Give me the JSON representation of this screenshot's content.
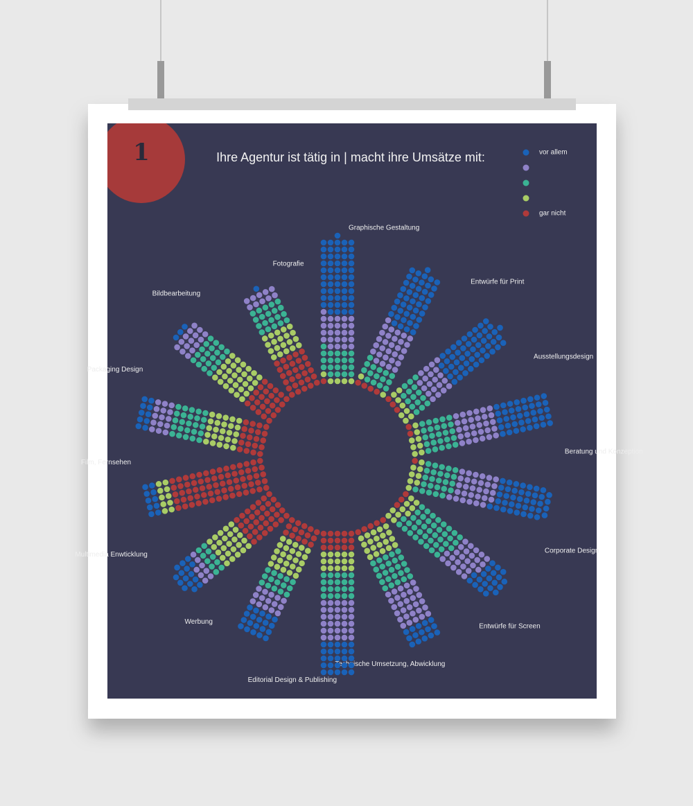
{
  "badge": "1",
  "chart_data": {
    "type": "radial-dot",
    "title": "Ihre Agentur ist tätig in | macht ihre Umsätze mit:",
    "categories": [
      "Graphische Gestaltung",
      "Entwürfe für Print",
      "Ausstellungsdesign",
      "Beratung und Konzeption",
      "Corporate Design",
      "Entwürfe für Screen",
      "Technische Umsetzung, Abwicklung",
      "Editorial Design & Publishing",
      "Werbung",
      "Multimedia Enwticklung",
      "Film, Fernsehen",
      "Packaging Design",
      "Bildbearbeitung",
      "Fotografie"
    ],
    "series": [
      {
        "name": "gar nicht",
        "color": "#b03a3a",
        "values": [
          1,
          4,
          3,
          2,
          1,
          3,
          5,
          15,
          15,
          35,
          70,
          20,
          25,
          30
        ]
      },
      {
        "name": null,
        "color": "#a9cc66",
        "values": [
          5,
          2,
          8,
          8,
          8,
          10,
          20,
          15,
          25,
          25,
          10,
          25,
          30,
          20
        ]
      },
      {
        "name": null,
        "color": "#3bb394",
        "values": [
          20,
          15,
          15,
          25,
          25,
          40,
          25,
          20,
          15,
          10,
          0,
          25,
          20,
          20
        ]
      },
      {
        "name": null,
        "color": "#8f82c8",
        "values": [
          25,
          30,
          20,
          30,
          30,
          25,
          30,
          30,
          15,
          8,
          0,
          15,
          15,
          10
        ]
      },
      {
        "name": "vor allem",
        "color": "#1a62b8",
        "values": [
          55,
          45,
          50,
          40,
          40,
          20,
          15,
          25,
          20,
          15,
          10,
          10,
          3,
          1
        ]
      }
    ]
  }
}
